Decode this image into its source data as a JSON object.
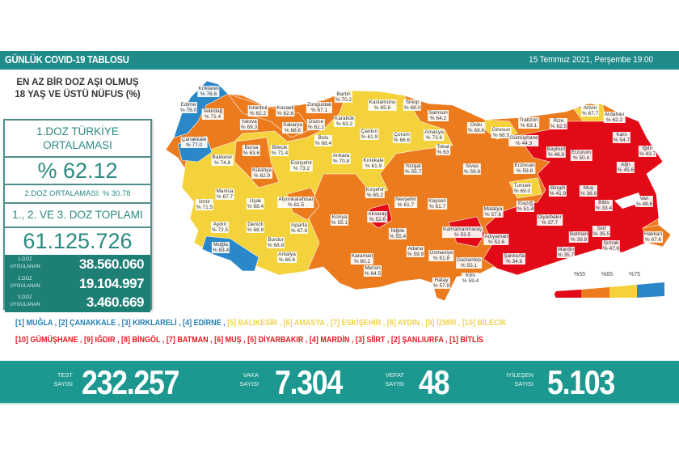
{
  "header": {
    "title": "GÜNLÜK COVID-19 TABLOSU",
    "date": "15 Temmuz 2021, Perşembe 19:00"
  },
  "left": {
    "title_line1": "EN AZ BİR DOZ AŞI OLMUŞ",
    "title_line2": "18 YAŞ VE ÜSTÜ NÜFUS (%)",
    "avg_label_1": "1.DOZ TÜRKİYE",
    "avg_label_2": "ORTALAMASI",
    "avg_value": "% 62.12",
    "dose2_avg": "2.DOZ ORTALAMASI: % 30.78",
    "total_label": "1., 2. VE 3. DOZ TOPLAMI",
    "total_value": "61.125.726",
    "doses": [
      {
        "label1": "1.DOZ",
        "label2": "UYGULANAN",
        "value": "38.560.060"
      },
      {
        "label1": "2.DOZ",
        "label2": "UYGULANAN",
        "value": "19.104.997"
      },
      {
        "label1": "3.DOZ",
        "label2": "UYGULANAN",
        "value": "3.460.669"
      }
    ]
  },
  "ranking": {
    "top_blue": "[1] MUĞLA , [2] ÇANAKKALE , [3] KIRKLARELİ , [4] EDİRNE ,",
    "top_yellow": " [5] BALIKESİR , [6] AMASYA , [7] ESKİŞEHİR , [8] AYDIN , [9] İZMİR , [10] BİLECİK",
    "bottom_red": "[10] GÜMÜŞHANE , [9] IĞDIR , [8] BİNGÖL , [7] BATMAN , [6] MUŞ , [5] DİYARBAKIR , [4] MARDİN , [3] SİİRT , [2] ŞANLIURFA , [1] BİTLİS"
  },
  "stats": [
    {
      "label1": "TEST",
      "label2": "SAYISI",
      "value": "232.257"
    },
    {
      "label1": "VAKA",
      "label2": "SAYISI",
      "value": "7.304"
    },
    {
      "label1": "VEFAT",
      "label2": "SAYISI",
      "value": "48"
    },
    {
      "label1": "İYİLEŞEN",
      "label2": "SAYISI",
      "value": "5.103"
    }
  ],
  "legend": {
    "thresholds": [
      "%55",
      "%65",
      "%75"
    ],
    "colors": [
      "#e20a17",
      "#ec7b1e",
      "#f3d23c",
      "#2a88c8"
    ]
  },
  "provinces": [
    {
      "name": "Kırklareli",
      "value": "% 76.6"
    },
    {
      "name": "Edirne",
      "value": "% 76.0"
    },
    {
      "name": "Tekirdağ",
      "value": "% 71.4"
    },
    {
      "name": "İstanbul",
      "value": "% 62.2"
    },
    {
      "name": "Kocaeli",
      "value": "% 62.6"
    },
    {
      "name": "Zonguldak",
      "value": "% 67.1"
    },
    {
      "name": "Bartın",
      "value": "% 70.2"
    },
    {
      "name": "Kastamonu",
      "value": "% 65.6"
    },
    {
      "name": "Sinop",
      "value": "% 68.0"
    },
    {
      "name": "Samsun",
      "value": "% 64.2"
    },
    {
      "name": "Karabük",
      "value": "% 63.2"
    },
    {
      "name": "Yalova",
      "value": "% 69.3"
    },
    {
      "name": "Düzce",
      "value": "% 61.1"
    },
    {
      "name": "Sakarya",
      "value": "% 68.6"
    },
    {
      "name": "Bolu",
      "value": "% 68.4"
    },
    {
      "name": "Çankırı",
      "value": "% 61.9"
    },
    {
      "name": "Çorum",
      "value": "% 66.6"
    },
    {
      "name": "Amasya",
      "value": "% 73.6"
    },
    {
      "name": "Ordu",
      "value": "% 69.6"
    },
    {
      "name": "Giresun",
      "value": "% 68.9"
    },
    {
      "name": "Trabzon",
      "value": "% 63.1"
    },
    {
      "name": "Rize",
      "value": "% 62.5"
    },
    {
      "name": "Artvin",
      "value": "% 67.7"
    },
    {
      "name": "Ardahan",
      "value": "% 62.2"
    },
    {
      "name": "Tokat",
      "value": "% 63"
    },
    {
      "name": "Bursa",
      "value": "% 63.6"
    },
    {
      "name": "Bilecik",
      "value": "% 71.4"
    },
    {
      "name": "Çanakkale",
      "value": "% 77.0"
    },
    {
      "name": "Balıkesir",
      "value": "% 74.8"
    },
    {
      "name": "Eskişehir",
      "value": "% 73.2"
    },
    {
      "name": "Kütahya",
      "value": "% 62.9"
    },
    {
      "name": "Ankara",
      "value": "% 70.8"
    },
    {
      "name": "Kırıkkale",
      "value": "% 61.9"
    },
    {
      "name": "Yozgat",
      "value": "% 55.7"
    },
    {
      "name": "Sivas",
      "value": "% 59.8"
    },
    {
      "name": "Gümüşhane",
      "value": "% 44.3"
    },
    {
      "name": "Bayburt",
      "value": "% 46.8"
    },
    {
      "name": "Erzurum",
      "value": "% 50.4"
    },
    {
      "name": "Kars",
      "value": "% 54.7"
    },
    {
      "name": "Iğdır",
      "value": "% 43.7"
    },
    {
      "name": "Ağrı",
      "value": "% 45.6"
    },
    {
      "name": "Erzincan",
      "value": "% 59.8"
    },
    {
      "name": "Tunceli",
      "value": "% 69.0"
    },
    {
      "name": "Bingöl",
      "value": "% 41.9"
    },
    {
      "name": "Muş",
      "value": "% 38.9"
    },
    {
      "name": "Van",
      "value": "% 48.6"
    },
    {
      "name": "Bitlis",
      "value": "% 33.4"
    },
    {
      "name": "Elazığ",
      "value": "% 51.4"
    },
    {
      "name": "Malatya",
      "value": "% 57.6"
    },
    {
      "name": "Kırşehir",
      "value": "% 65.2"
    },
    {
      "name": "Nevşehir",
      "value": "% 61.7"
    },
    {
      "name": "Kayseri",
      "value": "% 61.7"
    },
    {
      "name": "Aksaray",
      "value": "% 52.6"
    },
    {
      "name": "Niğde",
      "value": "% 55.4"
    },
    {
      "name": "Konya",
      "value": "% 55.1"
    },
    {
      "name": "Manisa",
      "value": "% 67.7"
    },
    {
      "name": "İzmir",
      "value": "% 71.5"
    },
    {
      "name": "Uşak",
      "value": "% 68.4"
    },
    {
      "name": "Afyonkarahisar",
      "value": "% 61.5"
    },
    {
      "name": "Isparta",
      "value": "% 67.8"
    },
    {
      "name": "Denizli",
      "value": "% 68.9"
    },
    {
      "name": "Aydın",
      "value": "% 72.5"
    },
    {
      "name": "Burdur",
      "value": "% 68.8"
    },
    {
      "name": "Muğla",
      "value": "% 83.4"
    },
    {
      "name": "Antalya",
      "value": "% 66.6"
    },
    {
      "name": "Karaman",
      "value": "% 60.2"
    },
    {
      "name": "Mersin",
      "value": "% 64.5"
    },
    {
      "name": "Adana",
      "value": "% 59.9"
    },
    {
      "name": "Osmaniye",
      "value": "% 61.8"
    },
    {
      "name": "Kahramanmaraş",
      "value": "% 53.5"
    },
    {
      "name": "Adıyaman",
      "value": "% 52.6"
    },
    {
      "name": "Gaziantep",
      "value": "% 55.1"
    },
    {
      "name": "Kilis",
      "value": "% 59.4"
    },
    {
      "name": "Hatay",
      "value": "% 57.9"
    },
    {
      "name": "Şanlıurfa",
      "value": "% 34.6"
    },
    {
      "name": "Diyarbakır",
      "value": "% 37.7"
    },
    {
      "name": "Batman",
      "value": "% 39.8"
    },
    {
      "name": "Siirt",
      "value": "% 35.5"
    },
    {
      "name": "Mardin",
      "value": "% 35.7"
    },
    {
      "name": "Şırnak",
      "value": "% 47.6"
    },
    {
      "name": "Hakkari",
      "value": "% 67.6"
    }
  ]
}
